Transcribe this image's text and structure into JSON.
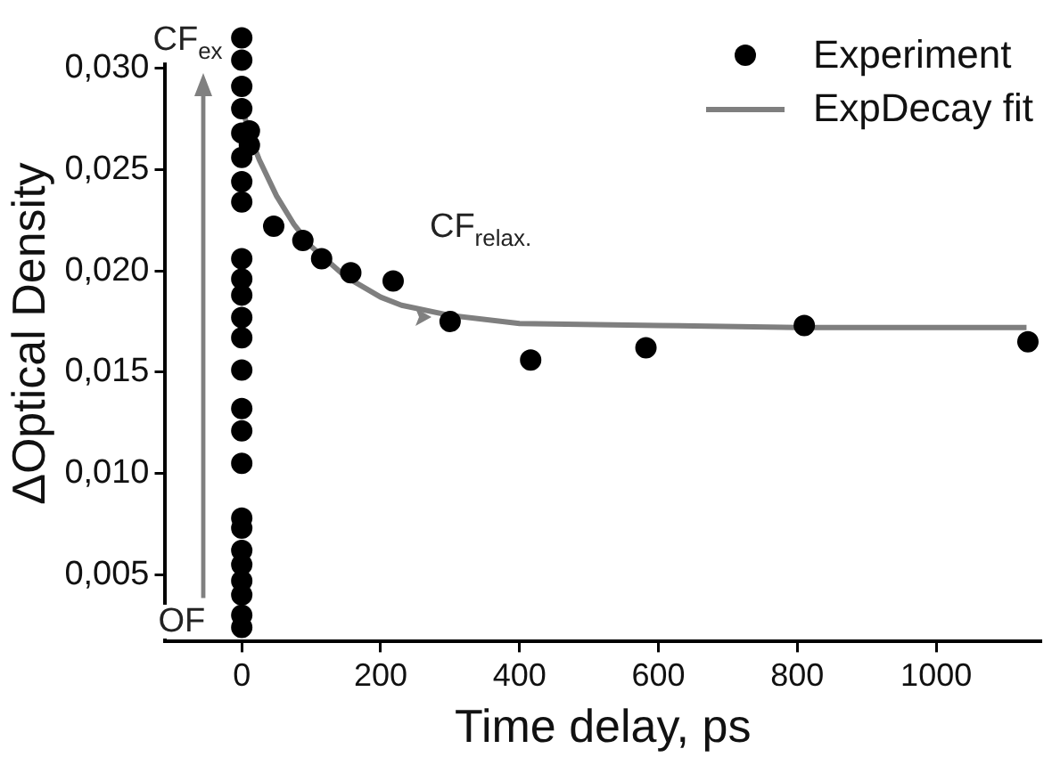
{
  "chart_data": {
    "type": "scatter",
    "xlabel": "Time delay, ps",
    "ylabel": "ΔOptical Density",
    "xlim": [
      -110,
      1150
    ],
    "xticks": [
      0,
      200,
      400,
      600,
      800,
      1000
    ],
    "ylim": [
      0.0017,
      0.0321
    ],
    "yticks": [
      {
        "value": 0.005,
        "label": "0,005"
      },
      {
        "value": 0.01,
        "label": "0,010"
      },
      {
        "value": 0.015,
        "label": "0,015"
      },
      {
        "value": 0.02,
        "label": "0,020"
      },
      {
        "value": 0.025,
        "label": "0,025"
      },
      {
        "value": 0.03,
        "label": "0,030"
      }
    ],
    "grid": false,
    "legend": "top right",
    "series": [
      {
        "name": "Experiment",
        "marker": "circle",
        "color": "#000000",
        "x": [
          0,
          0,
          0,
          0,
          0,
          0,
          0,
          0,
          0,
          0,
          0,
          0,
          0,
          0,
          0,
          0,
          0,
          0,
          0,
          0,
          0,
          0,
          0,
          0,
          0,
          11,
          11,
          46,
          88,
          115,
          157,
          218,
          300,
          416,
          582,
          810,
          1132
        ],
        "values": [
          0.0024,
          0.003,
          0.004,
          0.0047,
          0.0055,
          0.0062,
          0.0073,
          0.0078,
          0.0105,
          0.0121,
          0.0132,
          0.0151,
          0.0167,
          0.0177,
          0.0188,
          0.0196,
          0.0206,
          0.0234,
          0.0244,
          0.0256,
          0.0268,
          0.028,
          0.0291,
          0.0304,
          0.0315,
          0.0269,
          0.0262,
          0.0222,
          0.0215,
          0.0206,
          0.0199,
          0.0195,
          0.0175,
          0.0156,
          0.0162,
          0.0173,
          0.0165
        ]
      },
      {
        "name": "ExpDecay fit",
        "type": "line",
        "marker": "none",
        "color": "#7f7f7f",
        "x": [
          3,
          10,
          25,
          50,
          75,
          100,
          150,
          200,
          230,
          300,
          400,
          600,
          800,
          1130
        ],
        "values": [
          0.0278,
          0.0268,
          0.0255,
          0.0237,
          0.0223,
          0.0212,
          0.0197,
          0.0187,
          0.0183,
          0.0178,
          0.0174,
          0.0173,
          0.0172,
          0.0172
        ]
      }
    ],
    "annotations": [
      "CF$_{ex}$",
      "OF",
      "CF$_{relax.}$"
    ]
  }
}
